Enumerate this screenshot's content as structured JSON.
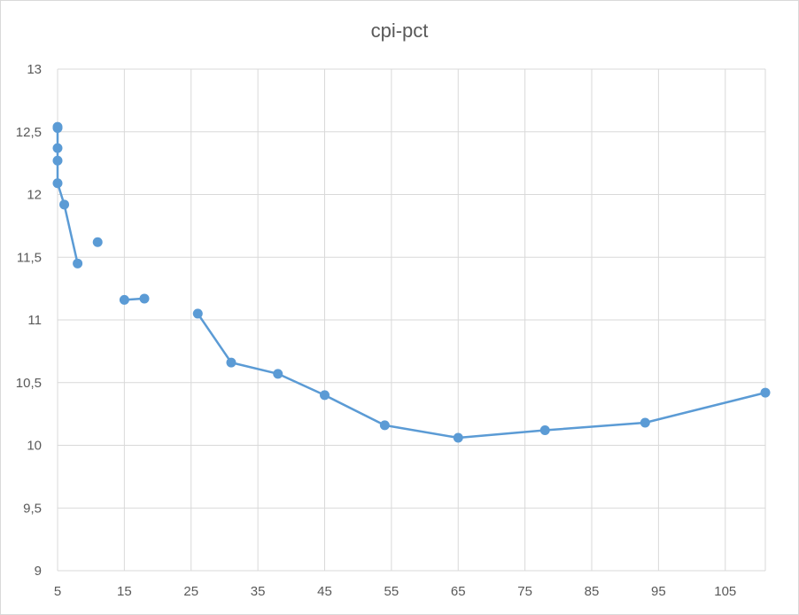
{
  "chart_data": {
    "type": "scatter",
    "title": "cpi-pct",
    "xlabel": "",
    "ylabel": "",
    "xlim": [
      5,
      111
    ],
    "ylim": [
      9,
      13
    ],
    "x_ticks": [
      "5",
      "15",
      "25",
      "35",
      "45",
      "55",
      "65",
      "75",
      "85",
      "95",
      "105"
    ],
    "y_ticks": [
      "9",
      "9,5",
      "10",
      "10,5",
      "11",
      "11,5",
      "12",
      "12,5",
      "13"
    ],
    "x_tick_values": [
      5,
      15,
      25,
      35,
      45,
      55,
      65,
      75,
      85,
      95,
      105
    ],
    "y_tick_values": [
      9,
      9.5,
      10,
      10.5,
      11,
      11.5,
      12,
      12.5,
      13
    ],
    "grid": true,
    "legend": "none",
    "series_color": "#5b9bd5",
    "segments": [
      [
        [
          5,
          12.53
        ],
        [
          5,
          12.54
        ],
        [
          5,
          12.37
        ],
        [
          5,
          12.27
        ],
        [
          5,
          12.09
        ],
        [
          6,
          11.92
        ],
        [
          8,
          11.45
        ]
      ],
      [
        [
          11,
          11.62
        ]
      ],
      [
        [
          15,
          11.16
        ],
        [
          18,
          11.17
        ]
      ],
      [
        [
          26,
          11.05
        ],
        [
          31,
          10.66
        ],
        [
          38,
          10.57
        ],
        [
          45,
          10.4
        ],
        [
          54,
          10.16
        ],
        [
          65,
          10.06
        ],
        [
          78,
          10.12
        ],
        [
          93,
          10.18
        ],
        [
          111,
          10.42
        ]
      ]
    ]
  }
}
